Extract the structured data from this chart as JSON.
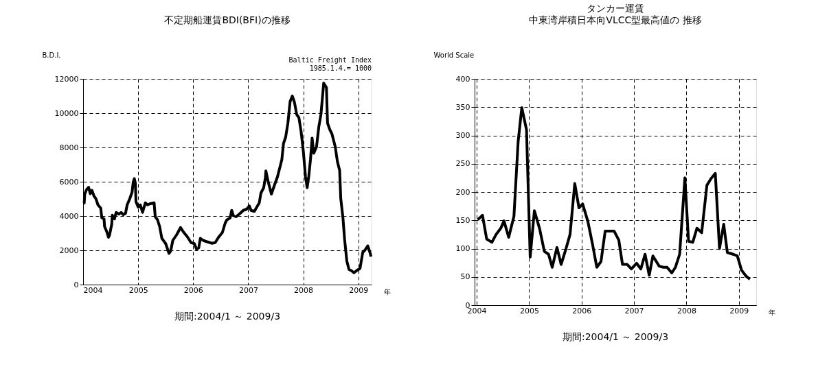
{
  "chart_data": [
    {
      "type": "line",
      "title": "不定期船運賃BDI(BFI)の推移",
      "ylabel": "B.D.I.",
      "xlabel": "年",
      "annotations": [
        "Baltic Freight Index",
        "1985.1.4.= 1000",
        "期間:2004/1 ～ 2009/3"
      ],
      "xlim": [
        2004,
        2009.24
      ],
      "xticks": [
        2004,
        2005,
        2006,
        2007,
        2008,
        2009
      ],
      "ylim": [
        0,
        12000
      ],
      "yticks": [
        0,
        2000,
        4000,
        6000,
        8000,
        10000,
        12000
      ],
      "grid": true,
      "line_style": "solid",
      "marker": "none",
      "series": [
        {
          "color": "#000000",
          "x": [
            2004.0,
            2004.02,
            2004.03,
            2004.06,
            2004.1,
            2004.13,
            2004.16,
            2004.2,
            2004.23,
            2004.27,
            2004.32,
            2004.34,
            2004.38,
            2004.39,
            2004.43,
            2004.46,
            2004.48,
            2004.52,
            2004.53,
            2004.57,
            2004.6,
            2004.65,
            2004.69,
            2004.73,
            2004.77,
            2004.8,
            2004.85,
            2004.89,
            2004.91,
            2004.93,
            2004.95,
            2004.96,
            2005.0,
            2005.04,
            2005.08,
            2005.13,
            2005.17,
            2005.21,
            2005.29,
            2005.31,
            2005.35,
            2005.39,
            2005.43,
            2005.5,
            2005.56,
            2005.59,
            2005.63,
            2005.7,
            2005.77,
            2005.82,
            2005.9,
            2005.96,
            2006.02,
            2006.06,
            2006.1,
            2006.13,
            2006.18,
            2006.24,
            2006.34,
            2006.4,
            2006.46,
            2006.53,
            2006.58,
            2006.61,
            2006.67,
            2006.7,
            2006.73,
            2006.78,
            2006.85,
            2006.91,
            2006.97,
            2007.02,
            2007.05,
            2007.11,
            2007.2,
            2007.23,
            2007.28,
            2007.31,
            2007.32,
            2007.36,
            2007.42,
            2007.48,
            2007.53,
            2007.58,
            2007.61,
            2007.64,
            2007.68,
            2007.72,
            2007.76,
            2007.8,
            2007.84,
            2007.88,
            2007.92,
            2007.96,
            2008.0,
            2008.04,
            2008.07,
            2008.1,
            2008.13,
            2008.16,
            2008.19,
            2008.24,
            2008.28,
            2008.32,
            2008.35,
            2008.37,
            2008.42,
            2008.44,
            2008.48,
            2008.52,
            2008.58,
            2008.62,
            2008.66,
            2008.68,
            2008.72,
            2008.75,
            2008.79,
            2008.83,
            2008.87,
            2008.92,
            2008.97,
            2009.03,
            2009.08,
            2009.12,
            2009.17,
            2009.21,
            2009.23
          ],
          "values": [
            4750,
            4750,
            5280,
            5530,
            5680,
            5300,
            5500,
            5150,
            5030,
            4650,
            4460,
            3900,
            3830,
            3390,
            3080,
            2760,
            2890,
            3520,
            4050,
            3830,
            4210,
            4110,
            4210,
            4080,
            4150,
            4650,
            5030,
            5400,
            5970,
            6180,
            5900,
            4840,
            4520,
            4650,
            4210,
            4770,
            4650,
            4710,
            4770,
            3960,
            3790,
            3390,
            2700,
            2390,
            1820,
            1950,
            2580,
            2910,
            3330,
            3080,
            2760,
            2450,
            2390,
            2070,
            2140,
            2700,
            2580,
            2510,
            2410,
            2450,
            2760,
            3040,
            3580,
            3770,
            3890,
            4330,
            4020,
            3960,
            4150,
            4330,
            4400,
            4590,
            4330,
            4270,
            4770,
            5340,
            5650,
            6220,
            6630,
            6030,
            5280,
            5840,
            6280,
            6910,
            7290,
            8230,
            8610,
            9420,
            10680,
            11000,
            10620,
            9920,
            9740,
            8920,
            7790,
            6280,
            5650,
            6340,
            7290,
            8540,
            7660,
            8040,
            9170,
            9920,
            11000,
            11750,
            11500,
            9420,
            9050,
            8790,
            8040,
            7160,
            6660,
            5030,
            3890,
            2640,
            1380,
            880,
            820,
            690,
            820,
            940,
            1880,
            2010,
            2260,
            1880,
            1630
          ]
        }
      ]
    },
    {
      "type": "line",
      "title": "タンカー運賃",
      "subtitle": "中東湾岸積日本向VLCC型最高値の 推移",
      "ylabel": "World Scale",
      "xlabel": "年",
      "annotations": [
        "期間:2004/1 ～ 2009/3"
      ],
      "xlim": [
        2003.96,
        2009.33
      ],
      "xticks": [
        2004,
        2005,
        2006,
        2007,
        2008,
        2009
      ],
      "ylim": [
        0,
        400
      ],
      "yticks": [
        0,
        50,
        100,
        150,
        200,
        250,
        300,
        350,
        400
      ],
      "grid": true,
      "line_style": "solid",
      "marker": "none",
      "series": [
        {
          "color": "#000000",
          "x": [
            2004.02,
            2004.11,
            2004.19,
            2004.29,
            2004.37,
            2004.46,
            2004.52,
            2004.61,
            2004.71,
            2004.79,
            2004.86,
            2004.95,
            2005.02,
            2005.1,
            2005.2,
            2005.29,
            2005.37,
            2005.44,
            2005.53,
            2005.61,
            2005.7,
            2005.78,
            2005.87,
            2005.95,
            2006.02,
            2006.12,
            2006.21,
            2006.29,
            2006.37,
            2006.45,
            2006.53,
            2006.62,
            2006.71,
            2006.78,
            2006.87,
            2006.95,
            2007.05,
            2007.13,
            2007.21,
            2007.29,
            2007.36,
            2007.48,
            2007.56,
            2007.63,
            2007.72,
            2007.79,
            2007.87,
            2007.97,
            2008.04,
            2008.12,
            2008.2,
            2008.29,
            2008.39,
            2008.47,
            2008.55,
            2008.63,
            2008.71,
            2008.78,
            2008.89,
            2008.97,
            2009.05,
            2009.14,
            2009.21
          ],
          "values": [
            151,
            159,
            117,
            111,
            125,
            136,
            149,
            120,
            157,
            289,
            349,
            310,
            85,
            167,
            135,
            95,
            90,
            67,
            102,
            72,
            99,
            125,
            215,
            172,
            179,
            148,
            107,
            67,
            77,
            131,
            131,
            131,
            115,
            72,
            72,
            64,
            74,
            64,
            90,
            53,
            87,
            69,
            67,
            67,
            57,
            67,
            90,
            225,
            113,
            111,
            136,
            128,
            212,
            224,
            233,
            100,
            143,
            93,
            90,
            87,
            62,
            51,
            46
          ]
        }
      ]
    }
  ]
}
